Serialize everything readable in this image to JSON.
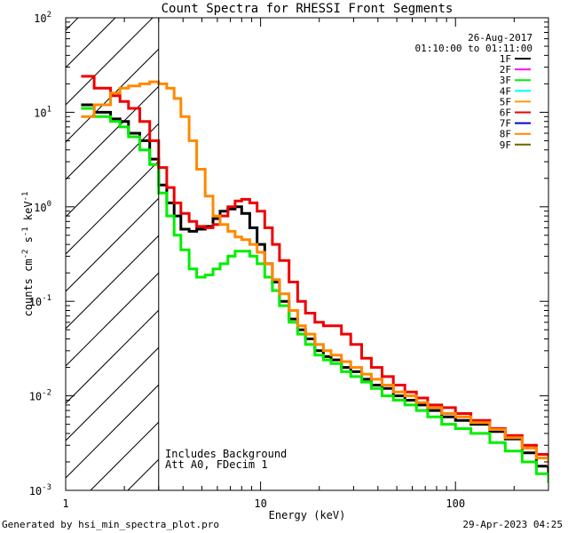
{
  "chart_data": {
    "type": "line",
    "title": "Count Spectra for RHESSI Front Segments",
    "xlabel": "Energy (keV)",
    "ylabel": "counts cm⁻² s⁻¹ keV⁻¹",
    "xscale": "log",
    "yscale": "log",
    "xlim": [
      1,
      300
    ],
    "ylim": [
      0.001,
      100
    ],
    "x_ticks": [
      {
        "value": 1,
        "label": "1"
      },
      {
        "value": 10,
        "label": "10"
      },
      {
        "value": 100,
        "label": "100"
      }
    ],
    "y_ticks": [
      {
        "value": 0.001,
        "base": "10",
        "exp": "-3"
      },
      {
        "value": 0.01,
        "base": "10",
        "exp": "-2"
      },
      {
        "value": 0.1,
        "base": "10",
        "exp": "-1"
      },
      {
        "value": 1,
        "base": "10",
        "exp": "0"
      },
      {
        "value": 10,
        "base": "10",
        "exp": "1"
      },
      {
        "value": 100,
        "base": "10",
        "exp": "2"
      }
    ],
    "date": "26-Aug-2017",
    "time_range": "01:10:00 to 01:11:00",
    "hatched_region": {
      "x_from": 1,
      "x_to": 3
    },
    "annotations": [
      "Includes Background",
      "Att A0, FDecim 1"
    ],
    "legend": [
      {
        "name": "1F",
        "color": "#000000"
      },
      {
        "name": "2F",
        "color": "#ff00ff"
      },
      {
        "name": "3F",
        "color": "#00ee00"
      },
      {
        "name": "4F",
        "color": "#00ffff"
      },
      {
        "name": "5F",
        "color": "#ff9900"
      },
      {
        "name": "6F",
        "color": "#ee0000"
      },
      {
        "name": "7F",
        "color": "#0000dd"
      },
      {
        "name": "8F",
        "color": "#ff8800"
      },
      {
        "name": "9F",
        "color": "#666600"
      }
    ],
    "series": [
      {
        "name": "1F",
        "color": "#000000",
        "points": [
          [
            1.2,
            12
          ],
          [
            1.3,
            12
          ],
          [
            1.4,
            10
          ],
          [
            1.5,
            10
          ],
          [
            1.7,
            8.5
          ],
          [
            1.9,
            8
          ],
          [
            2.1,
            6
          ],
          [
            2.4,
            5
          ],
          [
            2.7,
            3.2
          ],
          [
            3.0,
            1.7
          ],
          [
            3.3,
            1.1
          ],
          [
            3.6,
            0.8
          ],
          [
            3.9,
            0.58
          ],
          [
            4.3,
            0.55
          ],
          [
            4.7,
            0.58
          ],
          [
            5.2,
            0.62
          ],
          [
            5.7,
            0.75
          ],
          [
            6.2,
            0.9
          ],
          [
            6.8,
            0.95
          ],
          [
            7.4,
            1.0
          ],
          [
            8.0,
            0.85
          ],
          [
            8.8,
            0.6
          ],
          [
            9.6,
            0.4
          ],
          [
            10.5,
            0.25
          ],
          [
            11.5,
            0.16
          ],
          [
            12.5,
            0.1
          ],
          [
            14,
            0.065
          ],
          [
            15.5,
            0.05
          ],
          [
            17,
            0.04
          ],
          [
            19,
            0.03
          ],
          [
            21,
            0.026
          ],
          [
            23,
            0.024
          ],
          [
            26,
            0.02
          ],
          [
            29,
            0.018
          ],
          [
            33,
            0.015
          ],
          [
            37,
            0.013
          ],
          [
            42,
            0.012
          ],
          [
            48,
            0.01
          ],
          [
            55,
            0.009
          ],
          [
            63,
            0.008
          ],
          [
            72,
            0.007
          ],
          [
            85,
            0.006
          ],
          [
            100,
            0.0055
          ],
          [
            120,
            0.005
          ],
          [
            150,
            0.0042
          ],
          [
            180,
            0.0035
          ],
          [
            220,
            0.0025
          ],
          [
            260,
            0.0018
          ],
          [
            300,
            0.0015
          ]
        ]
      },
      {
        "name": "3F",
        "color": "#00ee00",
        "points": [
          [
            1.2,
            11
          ],
          [
            1.3,
            11
          ],
          [
            1.4,
            9
          ],
          [
            1.5,
            9
          ],
          [
            1.7,
            8
          ],
          [
            1.9,
            7
          ],
          [
            2.1,
            5.5
          ],
          [
            2.4,
            4
          ],
          [
            2.7,
            2.8
          ],
          [
            3.0,
            1.4
          ],
          [
            3.3,
            0.8
          ],
          [
            3.6,
            0.5
          ],
          [
            3.9,
            0.35
          ],
          [
            4.3,
            0.22
          ],
          [
            4.7,
            0.18
          ],
          [
            5.2,
            0.19
          ],
          [
            5.7,
            0.22
          ],
          [
            6.2,
            0.25
          ],
          [
            6.8,
            0.3
          ],
          [
            7.4,
            0.34
          ],
          [
            8.0,
            0.34
          ],
          [
            8.8,
            0.3
          ],
          [
            9.6,
            0.25
          ],
          [
            10.5,
            0.18
          ],
          [
            11.5,
            0.13
          ],
          [
            12.5,
            0.09
          ],
          [
            14,
            0.06
          ],
          [
            15.5,
            0.045
          ],
          [
            17,
            0.035
          ],
          [
            19,
            0.027
          ],
          [
            21,
            0.024
          ],
          [
            23,
            0.022
          ],
          [
            26,
            0.018
          ],
          [
            29,
            0.016
          ],
          [
            33,
            0.014
          ],
          [
            37,
            0.012
          ],
          [
            42,
            0.01
          ],
          [
            48,
            0.009
          ],
          [
            55,
            0.008
          ],
          [
            63,
            0.007
          ],
          [
            72,
            0.006
          ],
          [
            85,
            0.005
          ],
          [
            100,
            0.0045
          ],
          [
            120,
            0.004
          ],
          [
            150,
            0.0032
          ],
          [
            180,
            0.0026
          ],
          [
            220,
            0.002
          ],
          [
            260,
            0.0015
          ],
          [
            300,
            0.0012
          ]
        ]
      },
      {
        "name": "6F",
        "color": "#ee0000",
        "points": [
          [
            1.2,
            24
          ],
          [
            1.3,
            24
          ],
          [
            1.4,
            18
          ],
          [
            1.5,
            18
          ],
          [
            1.7,
            15
          ],
          [
            1.9,
            13
          ],
          [
            2.1,
            11
          ],
          [
            2.4,
            8
          ],
          [
            2.7,
            5
          ],
          [
            3.0,
            2.6
          ],
          [
            3.3,
            1.6
          ],
          [
            3.6,
            1.1
          ],
          [
            3.9,
            0.85
          ],
          [
            4.3,
            0.7
          ],
          [
            4.7,
            0.62
          ],
          [
            5.2,
            0.6
          ],
          [
            5.7,
            0.65
          ],
          [
            6.2,
            0.8
          ],
          [
            6.8,
            1.0
          ],
          [
            7.4,
            1.15
          ],
          [
            8.0,
            1.2
          ],
          [
            8.8,
            1.1
          ],
          [
            9.6,
            0.9
          ],
          [
            10.5,
            0.6
          ],
          [
            11.5,
            0.4
          ],
          [
            12.5,
            0.27
          ],
          [
            14,
            0.16
          ],
          [
            15.5,
            0.1
          ],
          [
            17,
            0.075
          ],
          [
            19,
            0.06
          ],
          [
            21,
            0.055
          ],
          [
            23,
            0.055
          ],
          [
            26,
            0.045
          ],
          [
            29,
            0.035
          ],
          [
            33,
            0.025
          ],
          [
            37,
            0.02
          ],
          [
            42,
            0.016
          ],
          [
            48,
            0.013
          ],
          [
            55,
            0.011
          ],
          [
            63,
            0.0095
          ],
          [
            72,
            0.008
          ],
          [
            85,
            0.0075
          ],
          [
            100,
            0.0065
          ],
          [
            120,
            0.0055
          ],
          [
            150,
            0.0045
          ],
          [
            180,
            0.0038
          ],
          [
            220,
            0.003
          ],
          [
            260,
            0.0024
          ],
          [
            300,
            0.002
          ]
        ]
      },
      {
        "name": "8F",
        "color": "#ff8800",
        "points": [
          [
            1.2,
            9
          ],
          [
            1.3,
            9
          ],
          [
            1.4,
            12
          ],
          [
            1.5,
            12
          ],
          [
            1.7,
            16
          ],
          [
            1.9,
            18
          ],
          [
            2.1,
            19
          ],
          [
            2.4,
            20
          ],
          [
            2.7,
            21
          ],
          [
            3.0,
            20
          ],
          [
            3.3,
            18
          ],
          [
            3.6,
            14
          ],
          [
            3.9,
            9
          ],
          [
            4.3,
            5
          ],
          [
            4.7,
            2.5
          ],
          [
            5.2,
            1.3
          ],
          [
            5.7,
            0.8
          ],
          [
            6.2,
            0.65
          ],
          [
            6.8,
            0.55
          ],
          [
            7.4,
            0.48
          ],
          [
            8.0,
            0.45
          ],
          [
            8.8,
            0.4
          ],
          [
            9.6,
            0.33
          ],
          [
            10.5,
            0.25
          ],
          [
            11.5,
            0.17
          ],
          [
            12.5,
            0.12
          ],
          [
            14,
            0.08
          ],
          [
            15.5,
            0.055
          ],
          [
            17,
            0.045
          ],
          [
            19,
            0.035
          ],
          [
            21,
            0.03
          ],
          [
            23,
            0.027
          ],
          [
            26,
            0.023
          ],
          [
            29,
            0.02
          ],
          [
            33,
            0.017
          ],
          [
            37,
            0.015
          ],
          [
            42,
            0.013
          ],
          [
            48,
            0.011
          ],
          [
            55,
            0.01
          ],
          [
            63,
            0.0085
          ],
          [
            72,
            0.0075
          ],
          [
            85,
            0.0065
          ],
          [
            100,
            0.006
          ],
          [
            120,
            0.0052
          ],
          [
            150,
            0.0044
          ],
          [
            180,
            0.0036
          ],
          [
            220,
            0.0028
          ],
          [
            260,
            0.0022
          ],
          [
            300,
            0.0018
          ]
        ]
      }
    ]
  },
  "footer": {
    "left": "Generated by hsi_min_spectra_plot.pro",
    "right": "29-Apr-2023 04:25"
  }
}
